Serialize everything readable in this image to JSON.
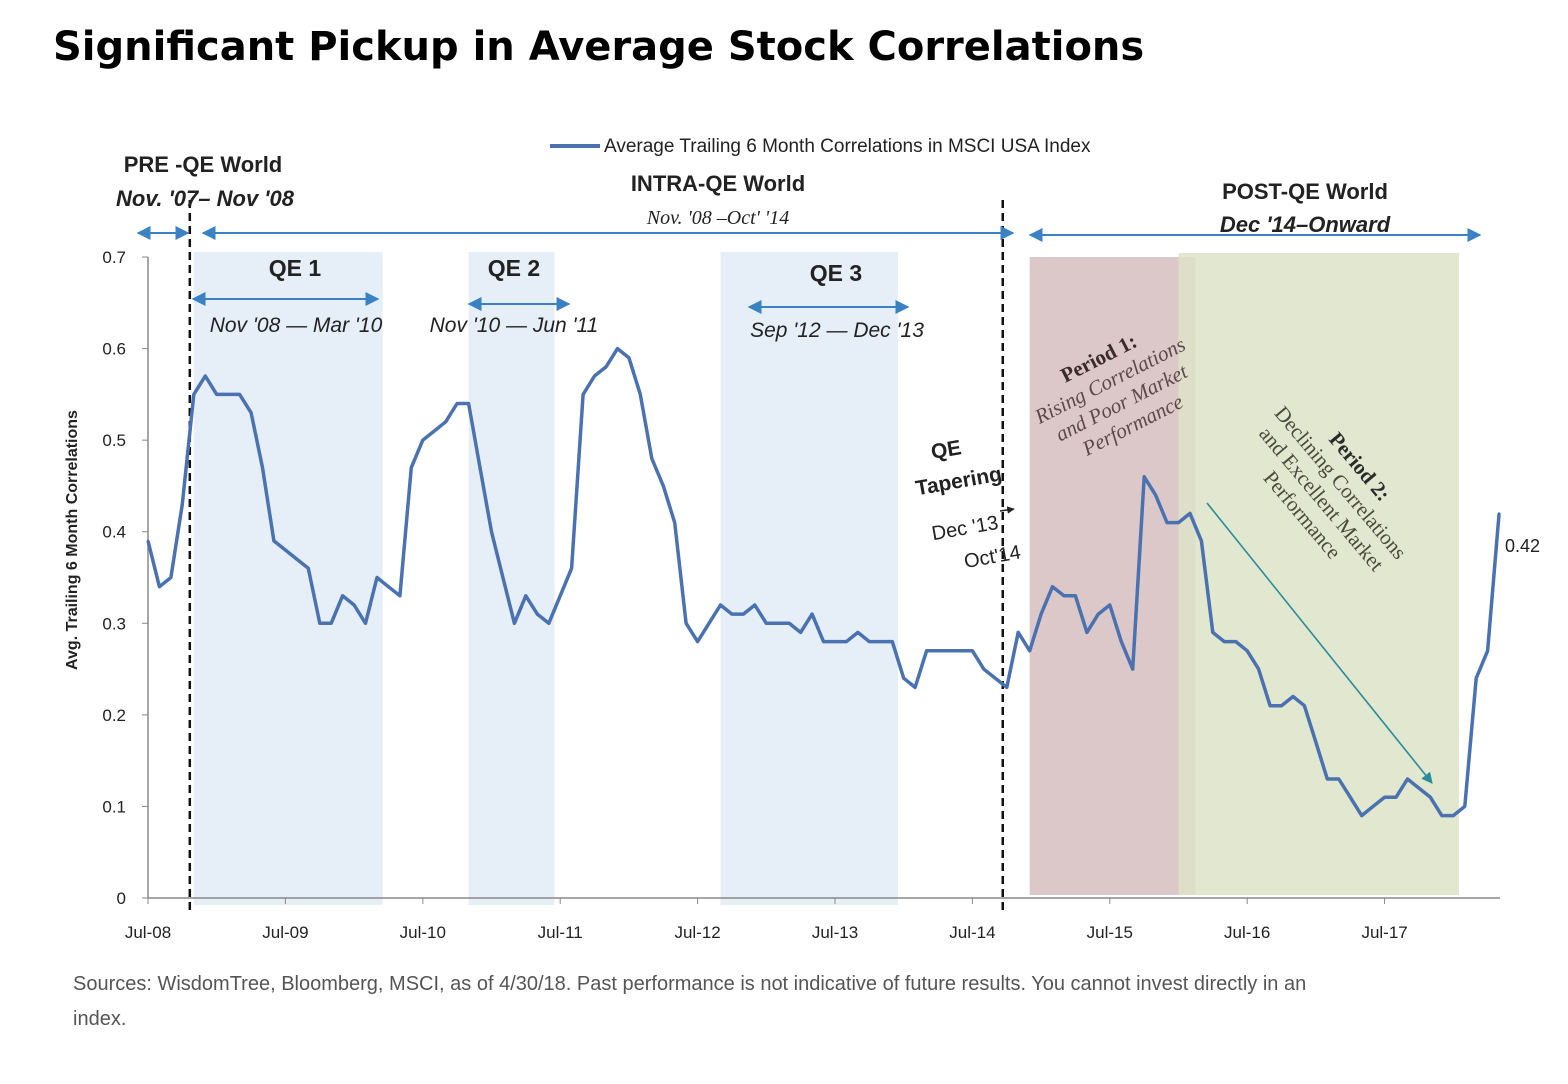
{
  "title": "Significant Pickup in Average Stock Correlations",
  "source_note": {
    "line1": "Sources: WisdomTree, Bloomberg, MSCI, as of 4/30/18. Past performance is not indicative of future results. You cannot invest directly in an",
    "line2": "index."
  },
  "annotations": {
    "pre_qe_title": "PRE -QE World",
    "pre_qe_dates": "Nov. '07– Nov '08",
    "intra_qe_title": "INTRA-QE World",
    "intra_qe_dates": "Nov. '08 –Oct' '14",
    "post_qe_title": "POST-QE World",
    "post_qe_dates": "Dec '14–Onward",
    "qe1": "QE 1",
    "qe1_dates": "Nov '08 — Mar '10",
    "qe2": "QE 2",
    "qe2_dates": "Nov '10 — Jun '11",
    "qe3": "QE 3",
    "qe3_dates": "Sep '12 — Dec '13",
    "tapering_1": "QE",
    "tapering_2": "Tapering",
    "tapering_3": "Dec '13",
    "tapering_4": "Oct'14",
    "period1_1": "Period 1:",
    "period1_2": "Rising Correlations",
    "period1_3": "and Poor Market",
    "period1_4": "Performance",
    "period2_1": "Period 2:",
    "period2_2": "Declining Correlations",
    "period2_3": "and Excellent Market",
    "period2_4": "Performance",
    "last_value": "0.42"
  },
  "chart_data": {
    "type": "line",
    "title": "Significant Pickup in Average Stock Correlations",
    "xlabel": "",
    "ylabel": "Avg. Trailing 6 Month Correlations",
    "ylim": [
      0,
      0.7
    ],
    "yticks": [
      "0",
      "0.1",
      "0.2",
      "0.3",
      "0.4",
      "0.5",
      "0.6",
      "0.7"
    ],
    "xticks": [
      "Jul-08",
      "Jul-09",
      "Jul-10",
      "Jul-11",
      "Jul-12",
      "Jul-13",
      "Jul-14",
      "Jul-15",
      "Jul-16",
      "Jul-17"
    ],
    "grid": false,
    "legend": "top-center",
    "series": [
      {
        "name": "Average Trailing 6 Month Correlations in MSCI USA Index",
        "color": "#4a72b0",
        "x": [
          "2008-07",
          "2008-08",
          "2008-09",
          "2008-10",
          "2008-11",
          "2008-12",
          "2009-01",
          "2009-02",
          "2009-03",
          "2009-04",
          "2009-05",
          "2009-06",
          "2009-07",
          "2009-08",
          "2009-09",
          "2009-10",
          "2009-11",
          "2009-12",
          "2010-01",
          "2010-02",
          "2010-03",
          "2010-04",
          "2010-05",
          "2010-06",
          "2010-07",
          "2010-08",
          "2010-09",
          "2010-10",
          "2010-11",
          "2010-12",
          "2011-01",
          "2011-02",
          "2011-03",
          "2011-04",
          "2011-05",
          "2011-06",
          "2011-07",
          "2011-08",
          "2011-09",
          "2011-10",
          "2011-11",
          "2011-12",
          "2012-01",
          "2012-02",
          "2012-03",
          "2012-04",
          "2012-05",
          "2012-06",
          "2012-07",
          "2012-08",
          "2012-09",
          "2012-10",
          "2012-11",
          "2012-12",
          "2013-01",
          "2013-02",
          "2013-03",
          "2013-04",
          "2013-05",
          "2013-06",
          "2013-07",
          "2013-08",
          "2013-09",
          "2013-10",
          "2013-11",
          "2013-12",
          "2014-01",
          "2014-02",
          "2014-03",
          "2014-04",
          "2014-05",
          "2014-06",
          "2014-07",
          "2014-08",
          "2014-09",
          "2014-10",
          "2014-11",
          "2014-12",
          "2015-01",
          "2015-02",
          "2015-03",
          "2015-04",
          "2015-05",
          "2015-06",
          "2015-07",
          "2015-08",
          "2015-09",
          "2015-10",
          "2015-11",
          "2015-12",
          "2016-01",
          "2016-02",
          "2016-03",
          "2016-04",
          "2016-05",
          "2016-06",
          "2016-07",
          "2016-08",
          "2016-09",
          "2016-10",
          "2016-11",
          "2016-12",
          "2017-01",
          "2017-02",
          "2017-03",
          "2017-04",
          "2017-05",
          "2017-06",
          "2017-07",
          "2017-08",
          "2017-09",
          "2017-10",
          "2017-11",
          "2017-12",
          "2018-01",
          "2018-02",
          "2018-03",
          "2018-04",
          "2018-05"
        ],
        "values": [
          0.39,
          0.34,
          0.35,
          0.43,
          0.55,
          0.57,
          0.55,
          0.55,
          0.55,
          0.53,
          0.47,
          0.39,
          0.38,
          0.37,
          0.36,
          0.3,
          0.3,
          0.33,
          0.32,
          0.3,
          0.35,
          0.34,
          0.33,
          0.47,
          0.5,
          0.51,
          0.52,
          0.54,
          0.54,
          0.47,
          0.4,
          0.35,
          0.3,
          0.33,
          0.31,
          0.3,
          0.33,
          0.36,
          0.55,
          0.57,
          0.58,
          0.6,
          0.59,
          0.55,
          0.48,
          0.45,
          0.41,
          0.3,
          0.28,
          0.3,
          0.32,
          0.31,
          0.31,
          0.32,
          0.3,
          0.3,
          0.3,
          0.29,
          0.31,
          0.28,
          0.28,
          0.28,
          0.29,
          0.28,
          0.28,
          0.28,
          0.24,
          0.23,
          0.27,
          0.27,
          0.27,
          0.27,
          0.27,
          0.25,
          0.24,
          0.23,
          0.29,
          0.27,
          0.31,
          0.34,
          0.33,
          0.33,
          0.29,
          0.31,
          0.32,
          0.28,
          0.25,
          0.46,
          0.44,
          0.41,
          0.41,
          0.42,
          0.39,
          0.29,
          0.28,
          0.28,
          0.27,
          0.25,
          0.21,
          0.21,
          0.22,
          0.21,
          0.17,
          0.13,
          0.13,
          0.11,
          0.09,
          0.1,
          0.11,
          0.11,
          0.13,
          0.12,
          0.11,
          0.09,
          0.09,
          0.1,
          0.24,
          0.27,
          0.42
        ]
      }
    ],
    "shaded_periods": [
      {
        "label": "QE 1",
        "start": "2008-11",
        "end": "2010-03",
        "color": "#e6eff8"
      },
      {
        "label": "QE 2",
        "start": "2010-11",
        "end": "2011-06",
        "color": "#e6eff8"
      },
      {
        "label": "QE 3",
        "start": "2012-09",
        "end": "2013-12",
        "color": "#e6eff8"
      },
      {
        "label": "Period 1",
        "start": "2014-12",
        "end": "2016-02",
        "color": "#dcc8c8"
      },
      {
        "label": "Period 2",
        "start": "2016-01",
        "end": "2018-01",
        "color": "#dde3c8"
      }
    ],
    "regime_dividers": [
      "2008-11",
      "2014-10"
    ]
  }
}
